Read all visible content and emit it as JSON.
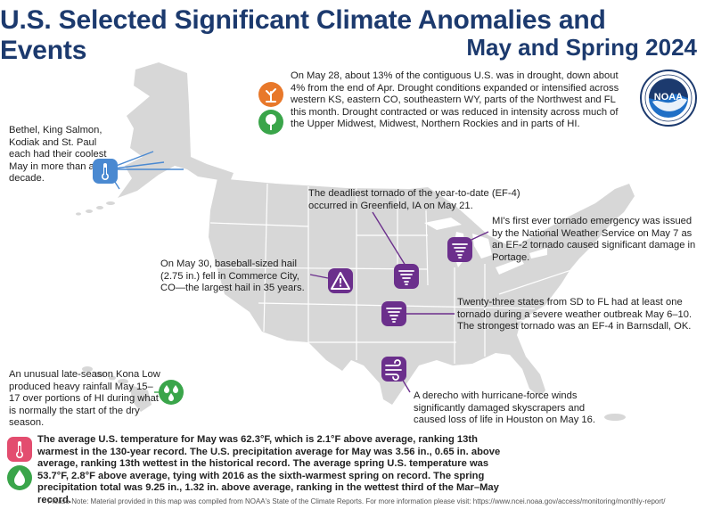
{
  "title": {
    "line1": "U.S. Selected Significant Climate Anomalies and Events",
    "line2": "May and Spring 2024"
  },
  "logo": {
    "label": "NOAA"
  },
  "events": {
    "drought": "On May 28, about 13% of the contiguous U.S. was in drought, down about 4% from the end of Apr. Drought conditions expanded or intensified across western KS, eastern CO, southeastern WY, parts of the Northwest and FL this month. Drought contracted or was reduced in intensity across much of the Upper Midwest, Midwest, Northern Rockies and in parts of HI.",
    "alaska": "Bethel, King Salmon, Kodiak and St. Paul each had their coolest May in more than a decade.",
    "greenfield": "The deadliest tornado of the year-to-date (EF-4) occurred in Greenfield, IA on May 21.",
    "michigan": "MI's first ever tornado emergency was issued by the National Weather Service on May 7 as an EF-2 tornado caused significant damage in Portage.",
    "hail": "On May 30, baseball-sized hail (2.75 in.) fell in Commerce City, CO—the largest hail in 35 years.",
    "outbreak": "Twenty-three states from SD to FL had at least one tornado during a severe weather outbreak May 6–10. The strongest tornado was an EF-4 in Barnsdall, OK.",
    "kona": "An unusual late-season Kona Low produced heavy rainfall May 15–17 over portions of HI during what is normally the start of the dry season.",
    "derecho": "A derecho with hurricane-force winds significantly damaged skyscrapers and caused loss of life in Houston on May 16."
  },
  "summary": {
    "temperature": "The average U.S. temperature for May was 62.3°F, which is 2.1°F above average, ranking 13th warmest in the 130-year record. The U.S. precipitation average for May was 3.56 in., 0.65 in. above average, ranking 13th wettest in the historical record. The average spring U.S. temperature was 53.7°F, 2.8°F above average, tying with 2016 as the sixth-warmest spring on record. The spring precipitation total was 9.25 in., 1.32 in. above average, ranking in the wettest third of the Mar–May record."
  },
  "note": "Please Note: Material provided in this map was compiled from NOAA's State of the Climate Reports. For more information please visit: https://www.ncei.noaa.gov/access/monitoring/monthly-report/",
  "icons": {
    "drought": "drought-tree-icon",
    "drought_reduced": "green-tree-icon",
    "alaska": "thermometer-cool-icon",
    "greenfield": "tornado-icon",
    "michigan": "tornado-icon",
    "hail": "hail-warning-icon",
    "outbreak": "tornado-icon",
    "derecho": "wind-icon",
    "kona": "rain-drops-icon",
    "temperature": "thermometer-icon",
    "precipitation": "raindrop-icon"
  },
  "colors": {
    "title": "#1c3a6e",
    "land": "#d7d7d7",
    "drought": "#e8782a",
    "green": "#3aa54a",
    "blue": "#4a89d1",
    "purple": "#6b2f8c"
  }
}
